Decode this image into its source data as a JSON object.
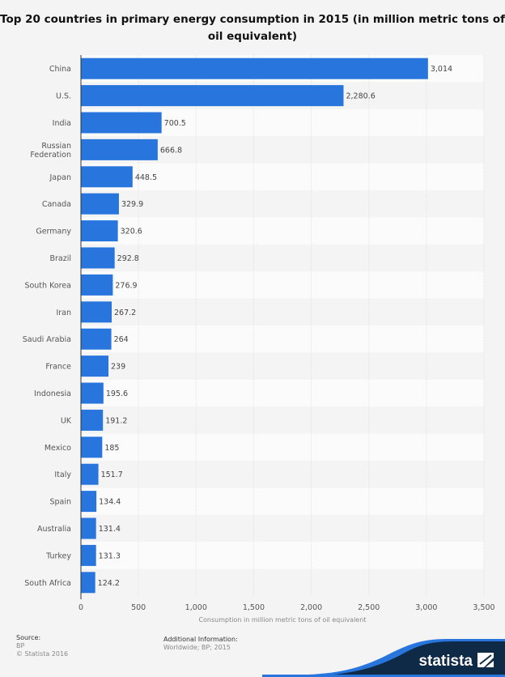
{
  "chart_data": {
    "type": "bar",
    "orientation": "horizontal",
    "title": "Top 20 countries in primary energy consumption in 2015 (in million metric tons of oil equivalent)",
    "xlabel": "Consumption in million metric tons of oil equivalent",
    "ylabel": "",
    "xlim": [
      0,
      3500
    ],
    "ticks": [
      "0",
      "500",
      "1,000",
      "1,500",
      "2,000",
      "2,500",
      "3,000",
      "3,500"
    ],
    "tick_values": [
      0,
      500,
      1000,
      1500,
      2000,
      2500,
      3000,
      3500
    ],
    "categories": [
      [
        "China"
      ],
      [
        "U.S."
      ],
      [
        "India"
      ],
      [
        "Russian",
        "Federation"
      ],
      [
        "Japan"
      ],
      [
        "Canada"
      ],
      [
        "Germany"
      ],
      [
        "Brazil"
      ],
      [
        "South Korea"
      ],
      [
        "Iran"
      ],
      [
        "Saudi Arabia"
      ],
      [
        "France"
      ],
      [
        "Indonesia"
      ],
      [
        "UK"
      ],
      [
        "Mexico"
      ],
      [
        "Italy"
      ],
      [
        "Spain"
      ],
      [
        "Australia"
      ],
      [
        "Turkey"
      ],
      [
        "South Africa"
      ]
    ],
    "values": [
      3014,
      2280.6,
      700.5,
      666.8,
      448.5,
      329.9,
      320.6,
      292.8,
      276.9,
      267.2,
      264,
      239,
      195.6,
      191.2,
      185,
      151.7,
      134.4,
      131.4,
      131.3,
      124.2
    ],
    "value_labels": [
      "3,014",
      "2,280.6",
      "700.5",
      "666.8",
      "448.5",
      "329.9",
      "320.6",
      "292.8",
      "276.9",
      "267.2",
      "264",
      "239",
      "195.6",
      "191.2",
      "185",
      "151.7",
      "134.4",
      "131.4",
      "131.3",
      "124.2"
    ],
    "bar_color": "#2876dd",
    "grid": true
  },
  "footer": {
    "source_label": "Source:",
    "source": "BP",
    "copyright": "© Statista 2016",
    "additional_label": "Additional Information:",
    "additional": "Worldwide; BP; 2015",
    "logo": "statista"
  }
}
